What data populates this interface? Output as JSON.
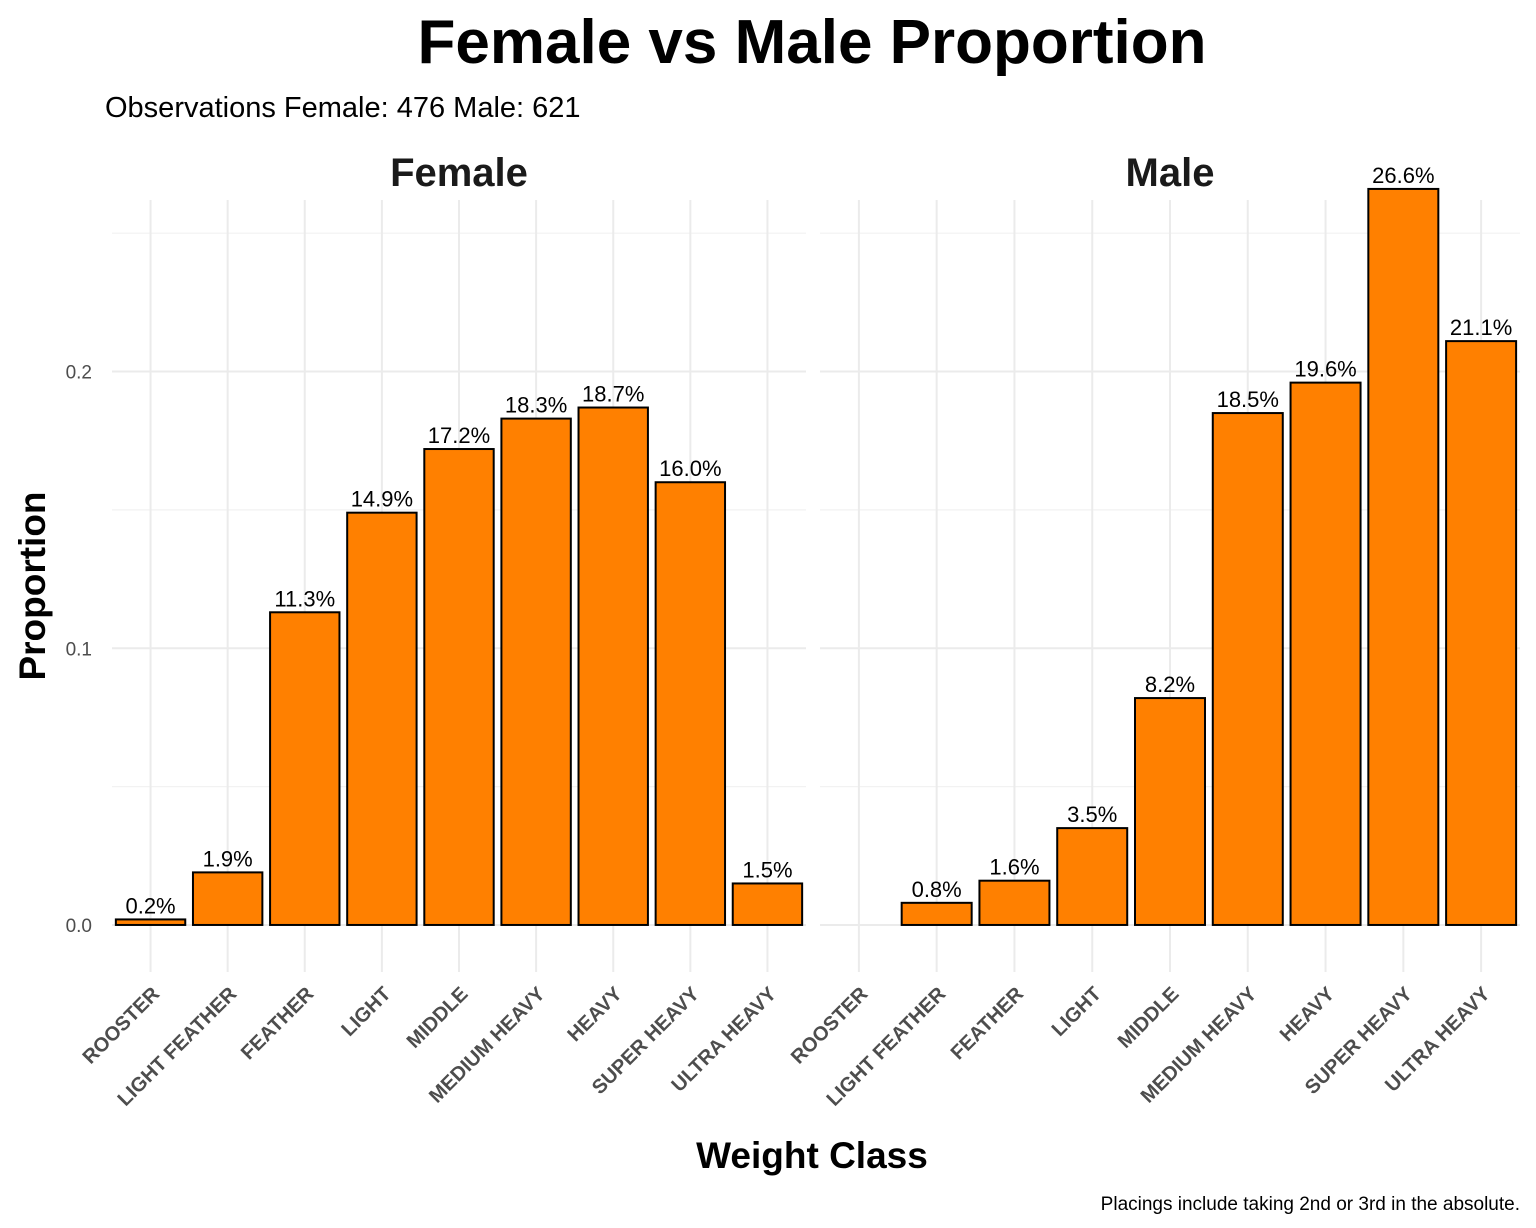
{
  "chart_data": {
    "type": "bar",
    "title": "Female vs Male Proportion",
    "subtitle": "Observations  Female: 476  Male: 621",
    "xlabel": "Weight Class",
    "ylabel": "Proportion",
    "caption": "Placings include taking 2nd or 3rd in the absolute.",
    "ylim": [
      -0.017,
      0.262
    ],
    "yticks": [
      0.0,
      0.1,
      0.2
    ],
    "ytick_labels": [
      "0.0",
      "0.1",
      "0.2"
    ],
    "grid": true,
    "bar_color": "#FF8000",
    "categories": [
      "ROOSTER",
      "LIGHT FEATHER",
      "FEATHER",
      "LIGHT",
      "MIDDLE",
      "MEDIUM HEAVY",
      "HEAVY",
      "SUPER HEAVY",
      "ULTRA HEAVY"
    ],
    "panels": [
      {
        "name": "Female",
        "values": [
          0.002,
          0.019,
          0.113,
          0.149,
          0.172,
          0.183,
          0.187,
          0.16,
          0.015
        ],
        "labels": [
          "0.2%",
          "1.9%",
          "11.3%",
          "14.9%",
          "17.2%",
          "18.3%",
          "18.7%",
          "16.0%",
          "1.5%"
        ]
      },
      {
        "name": "Male",
        "values": [
          null,
          0.008,
          0.016,
          0.035,
          0.082,
          0.185,
          0.196,
          0.266,
          0.211
        ],
        "labels": [
          "",
          "0.8%",
          "1.6%",
          "3.5%",
          "8.2%",
          "18.5%",
          "19.6%",
          "26.6%",
          "21.1%"
        ]
      }
    ]
  }
}
